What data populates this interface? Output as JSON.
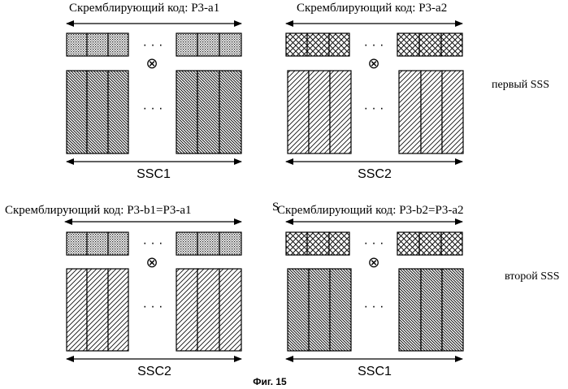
{
  "panels": [
    {
      "id": "top-left",
      "header": "Скремблирующий код: Р3-а1",
      "header_prefix": "",
      "scramble_pattern": "dotted",
      "block_pattern": "dense-back",
      "ssc_label": "SSC1"
    },
    {
      "id": "top-right",
      "header": "Скремблирующий код: Р3-а2",
      "header_prefix": "",
      "scramble_pattern": "crosshatch",
      "block_pattern": "sparse-fwd",
      "ssc_label": "SSC2"
    },
    {
      "id": "bottom-left",
      "header": "Скремблирующий код: Р3-b1=Р3-а1",
      "header_prefix": "",
      "scramble_pattern": "dotted",
      "block_pattern": "sparse-fwd",
      "ssc_label": "SSC2"
    },
    {
      "id": "bottom-right",
      "header": "Скремблирующий код: Р3-b2=Р3-а2",
      "header_prefix": "S",
      "scramble_pattern": "crosshatch",
      "block_pattern": "dense-back",
      "ssc_label": "SSC1"
    }
  ],
  "row_labels": {
    "first": "первый SSS",
    "second": "второй SSS"
  },
  "ellipsis": "· · ·",
  "multiply_symbol": "⊗",
  "figure_caption": "Фиг. 15"
}
